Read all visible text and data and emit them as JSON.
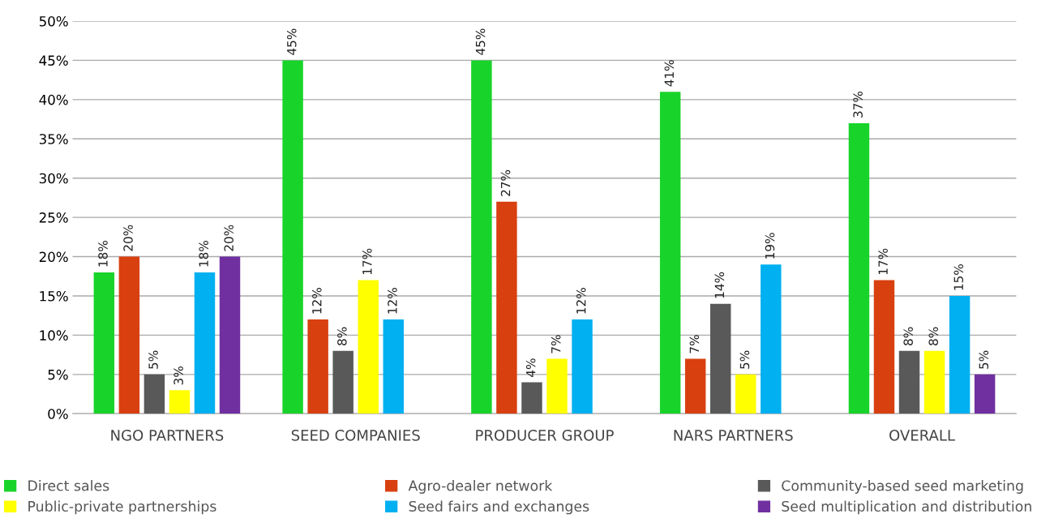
{
  "chart_data": {
    "type": "bar",
    "categories": [
      "NGO PARTNERS",
      "SEED COMPANIES",
      "PRODUCER GROUP",
      "NARS PARTNERS",
      "OVERALL"
    ],
    "series": [
      {
        "name": "Direct sales",
        "color": "#18d42a",
        "values": [
          18,
          45,
          45,
          41,
          37
        ],
        "value_labels": [
          "18%",
          "45%",
          "45%",
          "41%",
          "37%"
        ]
      },
      {
        "name": "Agro-dealer network",
        "color": "#d84010",
        "values": [
          20,
          12,
          27,
          7,
          17
        ],
        "value_labels": [
          "20%",
          "12%",
          "27%",
          "7%",
          "17%"
        ]
      },
      {
        "name": "Community-based seed marketing",
        "color": "#595959",
        "values": [
          5,
          8,
          4,
          14,
          8
        ],
        "value_labels": [
          "5%",
          "8%",
          "4%",
          "14%",
          "8%"
        ]
      },
      {
        "name": "Public-private partnerships",
        "color": "#ffff00",
        "values": [
          3,
          17,
          7,
          5,
          8
        ],
        "value_labels": [
          "3%",
          "17%",
          "7%",
          "5%",
          "8%"
        ]
      },
      {
        "name": "Seed fairs and exchanges",
        "color": "#00b0f0",
        "values": [
          18,
          12,
          12,
          19,
          15
        ],
        "value_labels": [
          "18%",
          "12%",
          "12%",
          "19%",
          "15%"
        ]
      },
      {
        "name": "Seed multiplication and distribution",
        "color": "#7030a0",
        "values": [
          20,
          null,
          null,
          null,
          5
        ],
        "value_labels": [
          "20%",
          null,
          null,
          null,
          "5%"
        ]
      }
    ],
    "ylim": [
      0,
      50
    ],
    "yticks": [
      {
        "value": 0,
        "label": "0%"
      },
      {
        "value": 5,
        "label": "5%"
      },
      {
        "value": 10,
        "label": "10%"
      },
      {
        "value": 15,
        "label": "15%"
      },
      {
        "value": 20,
        "label": "20%"
      },
      {
        "value": 25,
        "label": "25%"
      },
      {
        "value": 30,
        "label": "30%"
      },
      {
        "value": 35,
        "label": "35%"
      },
      {
        "value": 40,
        "label": "40%"
      },
      {
        "value": 45,
        "label": "45%"
      },
      {
        "value": 50,
        "label": "50%"
      }
    ],
    "grid": "y",
    "legend": "bottom"
  }
}
